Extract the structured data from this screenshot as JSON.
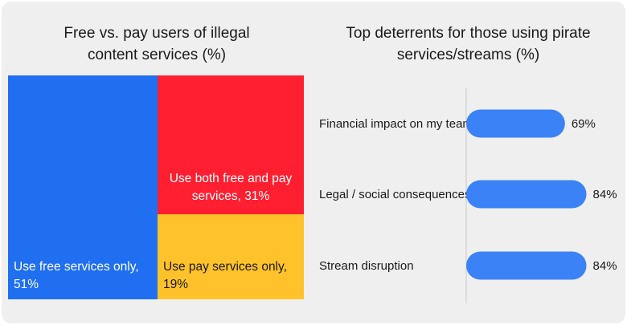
{
  "treemap": {
    "title": "Free vs. pay users of illegal\ncontent services (%)",
    "colors": {
      "free": "#1f6ff0",
      "both": "#ff1f30",
      "pay": "#ffc22a"
    }
  },
  "bars": {
    "title": "Top deterrents for those using pirate\nservices/streams (%)",
    "colors": {
      "bar": "#3b82f6",
      "axis": "#c8c8c8"
    }
  },
  "chart_data": [
    {
      "type": "treemap",
      "title": "Free vs. pay users of illegal\ncontent services (%)",
      "items": [
        {
          "label": "Use free services only, 51%",
          "value": 51
        },
        {
          "label": "Use both free and pay\nservices, 31%",
          "value": 31
        },
        {
          "label": "Use pay services only, 19%",
          "value": 19
        }
      ]
    },
    {
      "type": "bar",
      "orientation": "horizontal",
      "title": "Top deterrents for those using pirate\nservices/streams (%)",
      "categories": [
        "Financial impact on my team",
        "Legal / social consequences",
        "Stream disruption"
      ],
      "values": [
        69,
        84,
        84
      ],
      "value_labels": [
        "69%",
        "84%",
        "84%"
      ],
      "xlim": [
        0,
        100
      ]
    }
  ]
}
